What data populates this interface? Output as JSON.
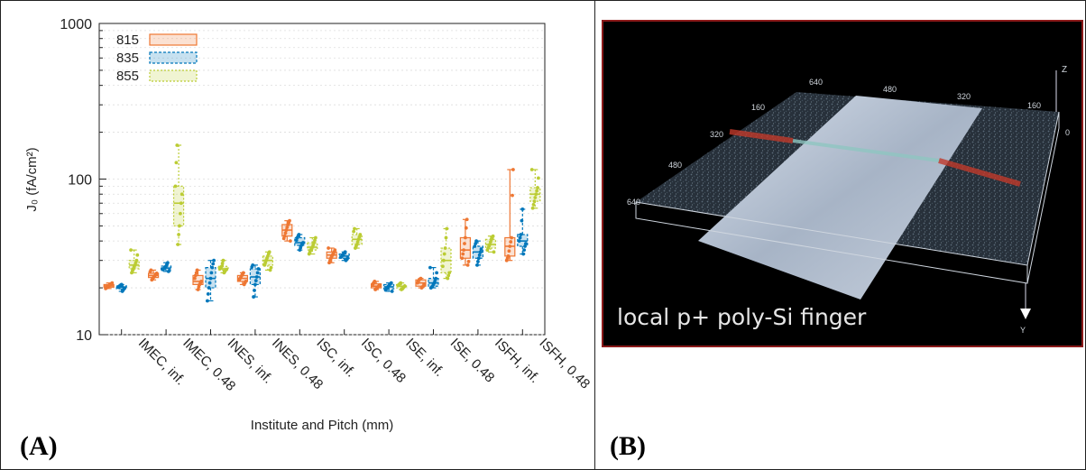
{
  "panels": {
    "a_label": "(A)",
    "b_label": "(B)",
    "b_caption": "local p+ poly-Si finger",
    "b_axis_ticks": {
      "x": [
        "640",
        "480",
        "320",
        "160"
      ],
      "left": [
        "160",
        "320",
        "480",
        "640"
      ],
      "z_top": "Z",
      "z_zero": "0",
      "y_end": "Y"
    }
  },
  "chart_data": {
    "type": "box",
    "title": "",
    "xlabel": "Institute and Pitch (mm)",
    "ylabel": "J₀ (fA/cm²)",
    "yscale": "log",
    "ylim": [
      10,
      1000
    ],
    "yticks": [
      "10",
      "100",
      "1000"
    ],
    "legend_position": "top-left",
    "categories": [
      "IMEC, inf.",
      "IMEC, 0.48",
      "INES, inf.",
      "INES, 0.48",
      "ISC, inf.",
      "ISC, 0.48",
      "ISE, inf.",
      "ISE, 0.48",
      "ISFH, inf.",
      "ISFH, 0.48"
    ],
    "series": [
      {
        "name": "815",
        "color": "#ee7733",
        "boxes": [
          {
            "min": 19.8,
            "q1": 20.2,
            "median": 20.6,
            "q3": 21.0,
            "max": 21.5
          },
          {
            "min": 22.5,
            "q1": 23.3,
            "median": 24.0,
            "q3": 24.8,
            "max": 26.0
          },
          {
            "min": 19.5,
            "q1": 21.0,
            "median": 22.0,
            "q3": 24.0,
            "max": 26.0
          },
          {
            "min": 21.0,
            "q1": 22.0,
            "median": 23.0,
            "q3": 24.0,
            "max": 25.0
          },
          {
            "min": 40.0,
            "q1": 43.0,
            "median": 47.0,
            "q3": 51.0,
            "max": 54.0
          },
          {
            "min": 29.0,
            "q1": 31.0,
            "median": 32.5,
            "q3": 34.0,
            "max": 36.0
          },
          {
            "min": 19.5,
            "q1": 20.0,
            "median": 20.5,
            "q3": 21.2,
            "max": 22.0
          },
          {
            "min": 20.0,
            "q1": 20.5,
            "median": 21.5,
            "q3": 22.5,
            "max": 23.0
          },
          {
            "min": 28.0,
            "q1": 31.0,
            "median": 35.0,
            "q3": 42.0,
            "max": 55.0
          },
          {
            "min": 30.0,
            "q1": 32.0,
            "median": 37.0,
            "q3": 42.0,
            "max": 115.0
          }
        ]
      },
      {
        "name": "835",
        "color": "#0077bb",
        "boxes": [
          {
            "min": 19.0,
            "q1": 19.7,
            "median": 20.2,
            "q3": 20.6,
            "max": 21.0
          },
          {
            "min": 25.5,
            "q1": 26.2,
            "median": 26.8,
            "q3": 27.6,
            "max": 29.0
          },
          {
            "min": 16.5,
            "q1": 20.0,
            "median": 23.0,
            "q3": 27.0,
            "max": 30.0
          },
          {
            "min": 17.5,
            "q1": 21.0,
            "median": 23.5,
            "q3": 26.5,
            "max": 28.0
          },
          {
            "min": 35.0,
            "q1": 37.5,
            "median": 39.0,
            "q3": 42.0,
            "max": 44.0
          },
          {
            "min": 30.0,
            "q1": 31.0,
            "median": 32.0,
            "q3": 33.0,
            "max": 34.0
          },
          {
            "min": 19.0,
            "q1": 19.7,
            "median": 20.3,
            "q3": 21.0,
            "max": 21.5
          },
          {
            "min": 20.0,
            "q1": 20.5,
            "median": 21.5,
            "q3": 23.0,
            "max": 27.0
          },
          {
            "min": 28.0,
            "q1": 31.0,
            "median": 34.0,
            "q3": 37.0,
            "max": 40.0
          },
          {
            "min": 33.0,
            "q1": 37.0,
            "median": 40.0,
            "q3": 44.0,
            "max": 64.0
          }
        ]
      },
      {
        "name": "855",
        "color": "#bbcc33",
        "boxes": [
          {
            "min": 25.0,
            "q1": 26.5,
            "median": 28.0,
            "q3": 30.0,
            "max": 35.0
          },
          {
            "min": 38.0,
            "q1": 50.0,
            "median": 70.0,
            "q3": 90.0,
            "max": 165.0
          },
          {
            "min": 25.0,
            "q1": 26.0,
            "median": 26.5,
            "q3": 27.5,
            "max": 30.0
          },
          {
            "min": 26.0,
            "q1": 28.0,
            "median": 30.0,
            "q3": 32.0,
            "max": 34.0
          },
          {
            "min": 33.0,
            "q1": 35.0,
            "median": 36.5,
            "q3": 39.0,
            "max": 42.0
          },
          {
            "min": 36.0,
            "q1": 38.0,
            "median": 41.0,
            "q3": 44.0,
            "max": 48.0
          },
          {
            "min": 19.5,
            "q1": 20.0,
            "median": 20.5,
            "q3": 21.0,
            "max": 21.5
          },
          {
            "min": 23.0,
            "q1": 25.0,
            "median": 30.0,
            "q3": 36.0,
            "max": 48.0
          },
          {
            "min": 34.0,
            "q1": 36.0,
            "median": 38.0,
            "q3": 41.0,
            "max": 43.0
          },
          {
            "min": 65.0,
            "q1": 72.0,
            "median": 80.0,
            "q3": 88.0,
            "max": 115.0
          }
        ]
      }
    ]
  }
}
